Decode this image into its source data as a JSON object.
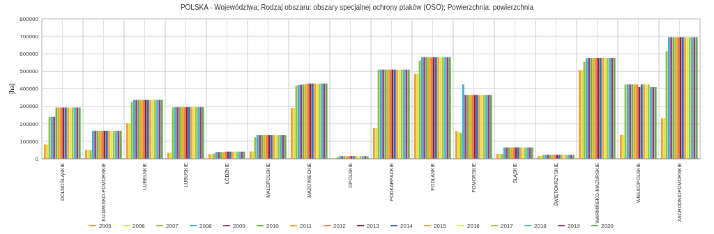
{
  "chart_data": {
    "type": "bar",
    "title": "POLSKA - Województwa; Rodzaj obszaru: obszary specjalnej ochrony ptaków (OSO); Powierzchnia: powierzchnia",
    "ylabel": "[ha]",
    "categories": [
      "DOLNOŚLĄSKIE",
      "KUJAWSKO-POMORSKIE",
      "LUBELSKIE",
      "LUBUSKIE",
      "ŁÓDZKIE",
      "MAŁOPOLSKIE",
      "MAZOWIECKIE",
      "OPOLSKIE",
      "PODKARPACKIE",
      "PODLASKIE",
      "POMORSKIE",
      "ŚLĄSKIE",
      "ŚWIĘTOKRZYSKIE",
      "WARMIŃSKO-MAZURSKIE",
      "WIELKOPOLSKIE",
      "ZACHODNIOPOMORSKIE"
    ],
    "ylim": [
      0,
      800000
    ],
    "yticks": [
      0,
      100000,
      200000,
      300000,
      400000,
      500000,
      600000,
      700000,
      800000
    ],
    "grid": true,
    "legend": "bottom",
    "series": [
      {
        "name": "2005",
        "color": "#f0a030",
        "values": [
          82000,
          52000,
          203000,
          35000,
          26000,
          42000,
          290000,
          null,
          175000,
          485000,
          158000,
          28000,
          17000,
          507000,
          137000,
          232000
        ]
      },
      {
        "name": "2006",
        "color": "#e0e040",
        "values": [
          82000,
          52000,
          203000,
          35000,
          26000,
          42000,
          290000,
          null,
          175000,
          485000,
          155000,
          28000,
          17000,
          507000,
          137000,
          232000
        ]
      },
      {
        "name": "2007",
        "color": "#90c040",
        "values": [
          240000,
          50000,
          325000,
          293000,
          30000,
          122000,
          418000,
          10000,
          510000,
          560000,
          148000,
          28000,
          22000,
          555000,
          425000,
          615000
        ]
      },
      {
        "name": "2008",
        "color": "#40b0d0",
        "values": [
          240000,
          160000,
          337000,
          295000,
          39000,
          135000,
          422000,
          15000,
          510000,
          580000,
          425000,
          65000,
          23000,
          575000,
          425000,
          695000
        ]
      },
      {
        "name": "2009",
        "color": "#a04080",
        "values": [
          240000,
          160000,
          337000,
          295000,
          39000,
          135000,
          423000,
          15000,
          510000,
          580000,
          365000,
          65000,
          23000,
          577000,
          425000,
          695000
        ]
      },
      {
        "name": "2010",
        "color": "#70b040",
        "values": [
          293000,
          160000,
          337000,
          295000,
          39000,
          135000,
          425000,
          15000,
          510000,
          580000,
          365000,
          65000,
          23000,
          577000,
          425000,
          695000
        ]
      },
      {
        "name": "2011",
        "color": "#e0b020",
        "values": [
          293000,
          160000,
          337000,
          295000,
          39000,
          135000,
          427000,
          15000,
          510000,
          580000,
          365000,
          65000,
          23000,
          577000,
          425000,
          695000
        ]
      },
      {
        "name": "2012",
        "color": "#f08040",
        "values": [
          293000,
          160000,
          337000,
          295000,
          41000,
          135000,
          430000,
          15000,
          510000,
          580000,
          365000,
          65000,
          23000,
          577000,
          425000,
          695000
        ]
      },
      {
        "name": "2013",
        "color": "#902040",
        "values": [
          293000,
          160000,
          337000,
          295000,
          41000,
          135000,
          430000,
          15000,
          510000,
          580000,
          365000,
          65000,
          23000,
          577000,
          410000,
          695000
        ]
      },
      {
        "name": "2014",
        "color": "#3070b0",
        "values": [
          293000,
          160000,
          337000,
          295000,
          41000,
          135000,
          430000,
          15000,
          510000,
          580000,
          365000,
          65000,
          23000,
          577000,
          425000,
          695000
        ]
      },
      {
        "name": "2015",
        "color": "#f0a838",
        "values": [
          293000,
          160000,
          337000,
          295000,
          41000,
          135000,
          430000,
          15000,
          510000,
          580000,
          365000,
          65000,
          23000,
          577000,
          425000,
          695000
        ]
      },
      {
        "name": "2016",
        "color": "#e8e448",
        "values": [
          293000,
          160000,
          337000,
          295000,
          41000,
          135000,
          430000,
          15000,
          510000,
          580000,
          365000,
          65000,
          23000,
          577000,
          425000,
          695000
        ]
      },
      {
        "name": "2017",
        "color": "#a0c848",
        "values": [
          293000,
          160000,
          337000,
          295000,
          41000,
          135000,
          430000,
          15000,
          510000,
          580000,
          365000,
          65000,
          23000,
          577000,
          425000,
          695000
        ]
      },
      {
        "name": "2018",
        "color": "#48b8d8",
        "values": [
          293000,
          160000,
          337000,
          295000,
          41000,
          135000,
          430000,
          15000,
          510000,
          580000,
          365000,
          65000,
          23000,
          577000,
          410000,
          695000
        ]
      },
      {
        "name": "2019",
        "color": "#a03878",
        "values": [
          293000,
          160000,
          337000,
          295000,
          41000,
          135000,
          430000,
          15000,
          510000,
          580000,
          365000,
          65000,
          23000,
          577000,
          410000,
          695000
        ]
      },
      {
        "name": "2020",
        "color": "#60b050",
        "values": [
          293000,
          160000,
          337000,
          295000,
          41000,
          135000,
          430000,
          15000,
          510000,
          580000,
          365000,
          65000,
          23000,
          577000,
          410000,
          695000
        ]
      }
    ]
  }
}
